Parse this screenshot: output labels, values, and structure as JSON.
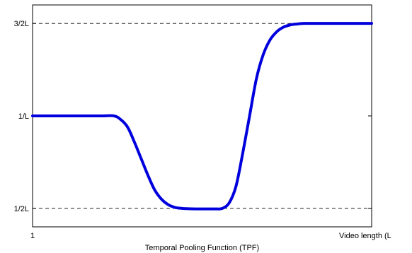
{
  "chart_data": {
    "type": "line",
    "title": "",
    "xlabel": "Temporal Pooling Function (TPF)",
    "ylabel": "",
    "x_tick_labels": [
      {
        "x": 0,
        "label": "1"
      },
      {
        "x": 1,
        "label": "Video length (L"
      }
    ],
    "y_tick_labels": [
      {
        "y": 0.5,
        "label": "1/2L"
      },
      {
        "y": 1.0,
        "label": "1/L"
      },
      {
        "y": 1.5,
        "label": "3/2L"
      }
    ],
    "xlim": [
      0,
      1
    ],
    "ylim": [
      0.4,
      1.6
    ],
    "reference_lines": [
      {
        "y": 0.5,
        "style": "dashed"
      },
      {
        "y": 1.5,
        "style": "dashed"
      }
    ],
    "grid": false,
    "legend": "none",
    "series": [
      {
        "color": "#0000dd",
        "x": [
          0.0,
          0.1,
          0.2,
          0.24,
          0.26,
          0.28,
          0.3,
          0.32,
          0.34,
          0.36,
          0.38,
          0.4,
          0.42,
          0.44,
          0.46,
          0.48,
          0.5,
          0.52,
          0.54,
          0.56,
          0.58,
          0.6,
          0.62,
          0.64,
          0.66,
          0.68,
          0.7,
          0.72,
          0.74,
          0.76,
          0.78,
          0.8,
          0.82,
          0.85,
          0.9,
          1.0
        ],
        "y": [
          1.0,
          1.0,
          1.0,
          1.0,
          0.98,
          0.94,
          0.86,
          0.77,
          0.68,
          0.6,
          0.55,
          0.52,
          0.505,
          0.5,
          0.498,
          0.497,
          0.497,
          0.497,
          0.497,
          0.5,
          0.53,
          0.62,
          0.8,
          1.0,
          1.2,
          1.33,
          1.41,
          1.455,
          1.48,
          1.492,
          1.497,
          1.5,
          1.5,
          1.5,
          1.5,
          1.5
        ]
      }
    ]
  }
}
